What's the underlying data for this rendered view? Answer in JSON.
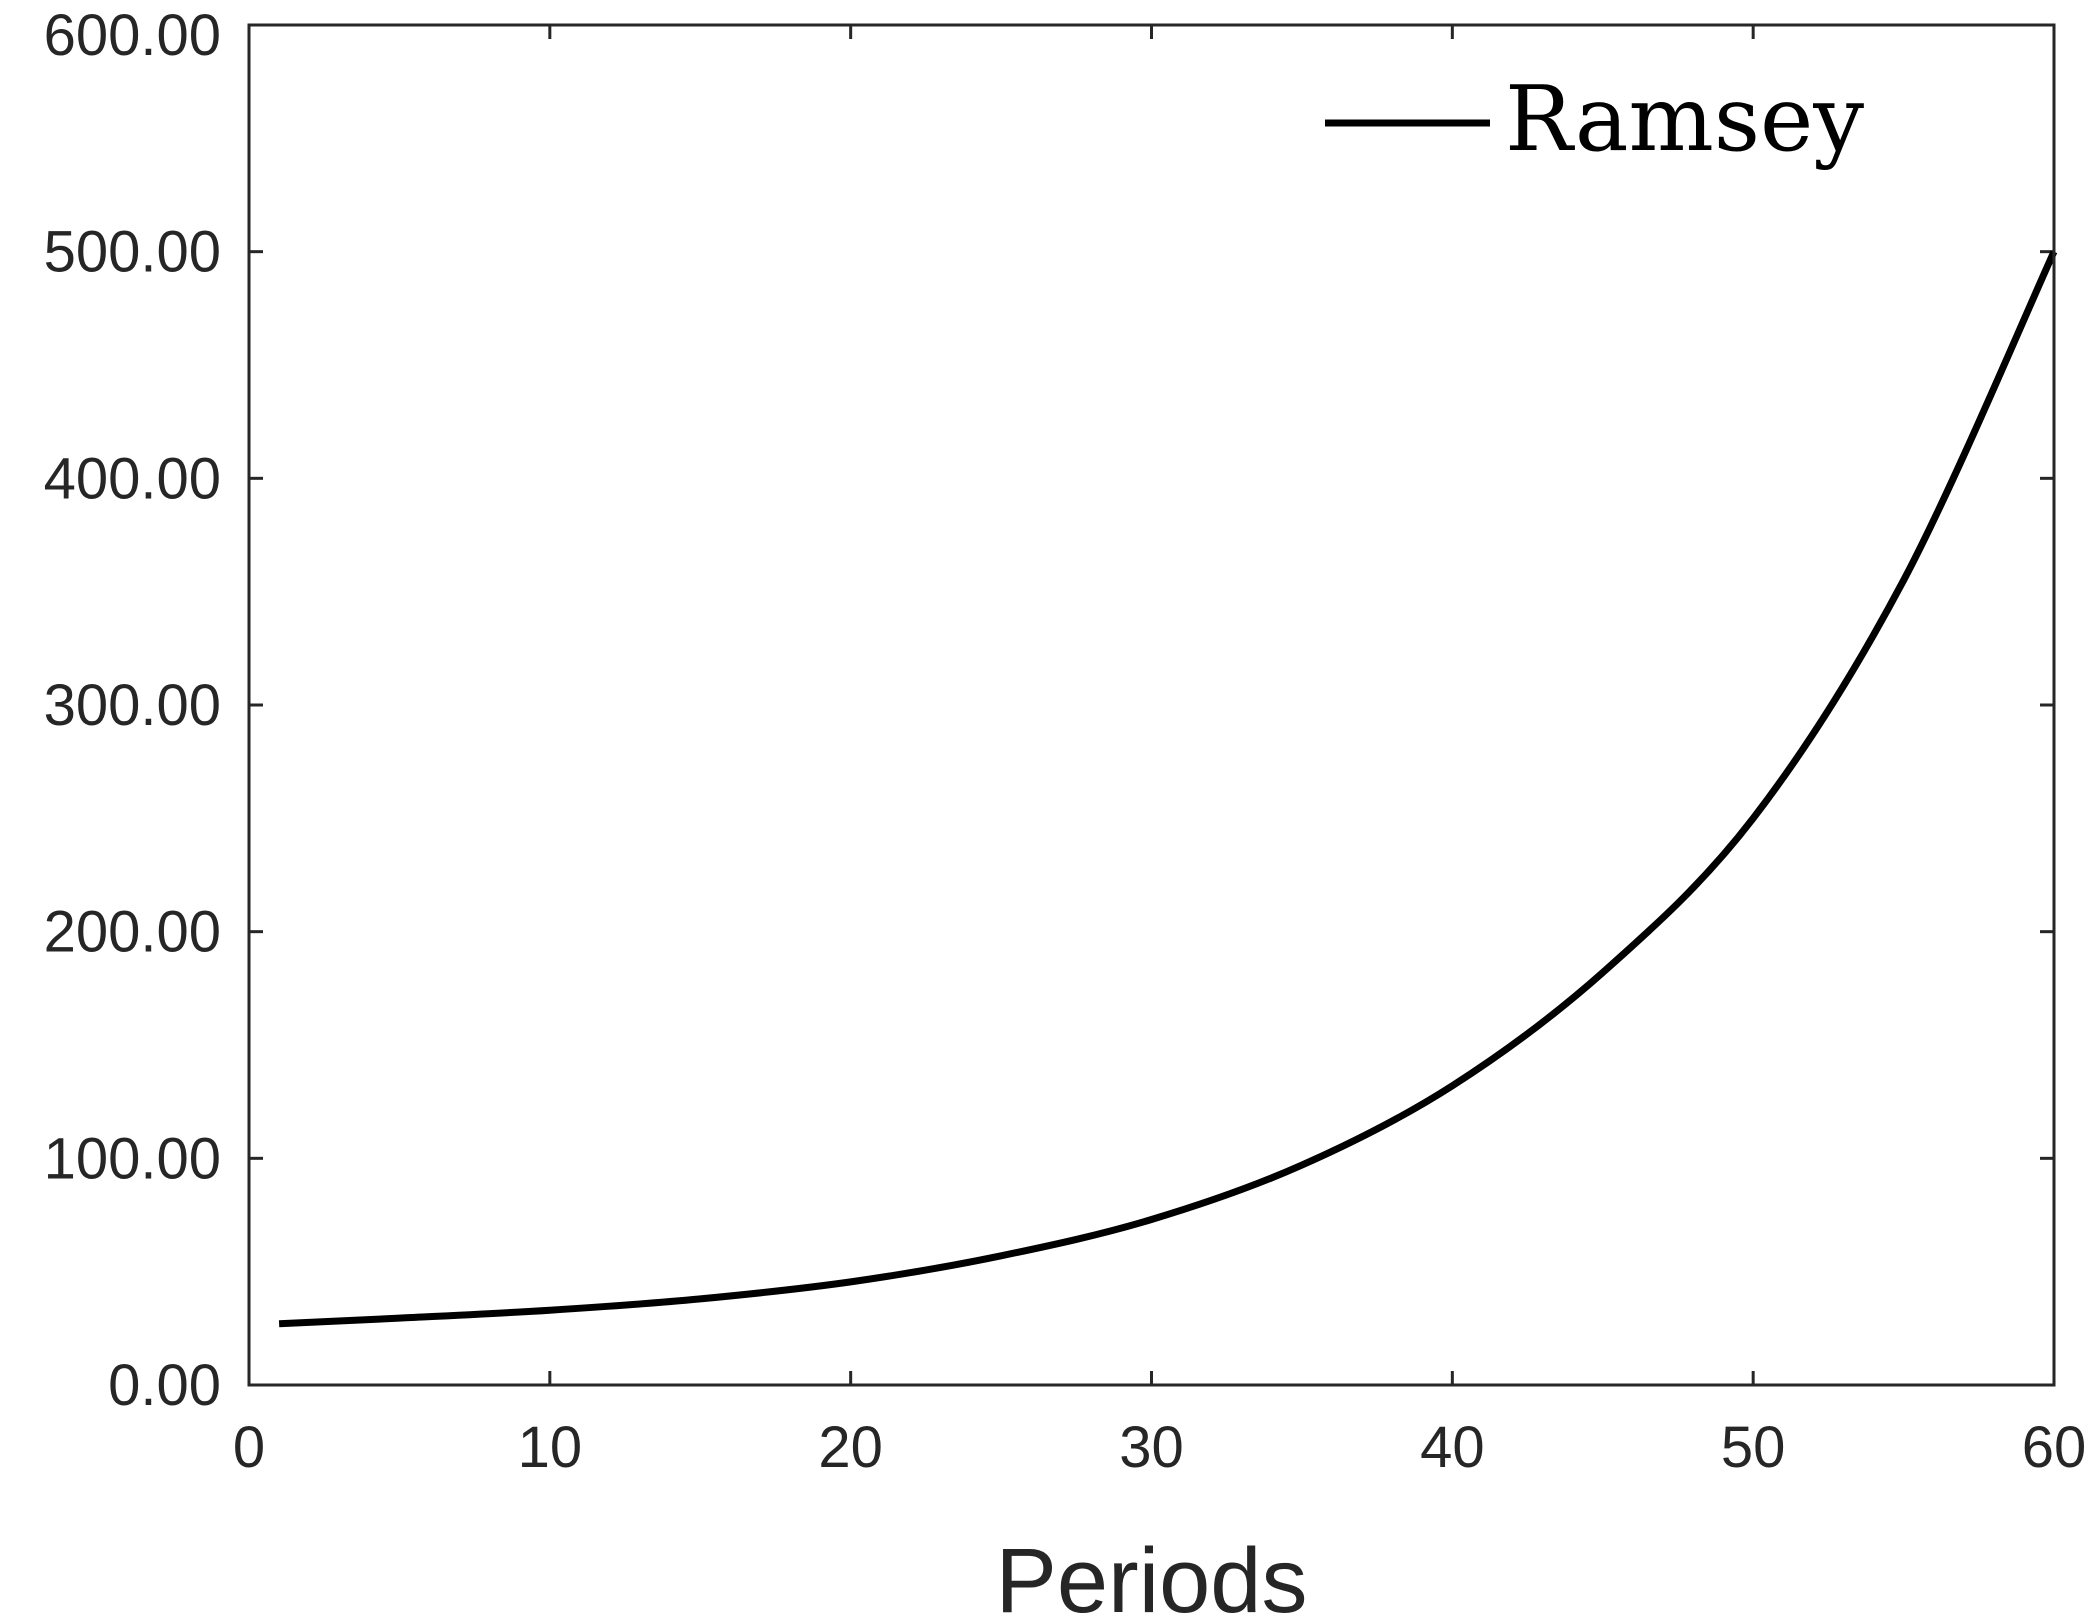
{
  "chart_data": {
    "type": "line",
    "xlabel": "Periods",
    "ylabel": "",
    "xlim": [
      0,
      60
    ],
    "ylim": [
      0,
      600
    ],
    "xticks": [
      0,
      10,
      20,
      30,
      40,
      50,
      60
    ],
    "xtick_labels": [
      "0",
      "10",
      "20",
      "30",
      "40",
      "50",
      "60"
    ],
    "yticks": [
      0,
      100,
      200,
      300,
      400,
      500,
      600
    ],
    "ytick_labels": [
      "0.00",
      "100.00",
      "200.00",
      "300.00",
      "400.00",
      "500.00",
      "600.00"
    ],
    "grid": false,
    "legend_position": "top-right",
    "series": [
      {
        "name": "Ramsey",
        "color": "#000000",
        "x": [
          1,
          5,
          10,
          15,
          20,
          25,
          30,
          35,
          40,
          45,
          50,
          55,
          60
        ],
        "y": [
          27,
          29.5,
          33,
          38,
          45.5,
          57,
          73,
          97,
          132,
          182,
          250,
          355,
          500
        ]
      }
    ]
  }
}
